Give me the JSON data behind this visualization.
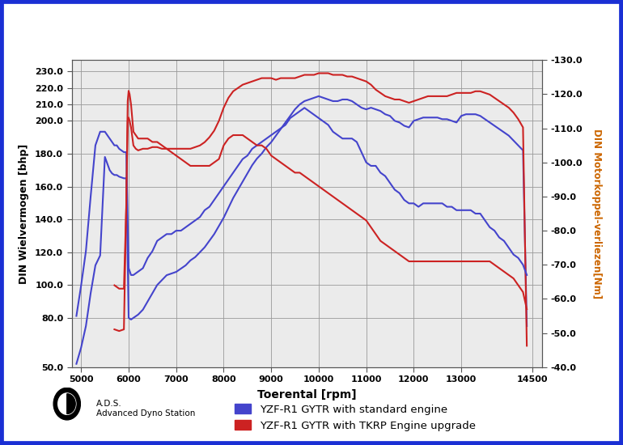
{
  "xlabel": "Toerental [rpm]",
  "ylabel_left": "DIN Wielvermogen [bhp]",
  "ylabel_right": "DIN Motorkoppel-verliezen[Nm]",
  "xlim": [
    4800,
    14700
  ],
  "ylim_left": [
    50.0,
    237.0
  ],
  "ylim_right": [
    -40.0,
    -130.0
  ],
  "yticks_left": [
    50.0,
    80.0,
    100.0,
    120.0,
    140.0,
    160.0,
    180.0,
    200.0,
    210.0,
    220.0,
    230.0
  ],
  "yticks_right": [
    -40.0,
    -50.0,
    -60.0,
    -70.0,
    -80.0,
    -90.0,
    -100.0,
    -110.0,
    -120.0,
    -130.0
  ],
  "xticks": [
    5000,
    6000,
    7000,
    8000,
    9000,
    10000,
    11000,
    12000,
    13000,
    14500
  ],
  "background_color": "#ebebeb",
  "border_color": "#1a2fd4",
  "grid_color": "#999999",
  "blue_color": "#4444cc",
  "red_color": "#cc2222",
  "legend_blue": "YZF-R1 GYTR with standard engine",
  "legend_red": "YZF-R1 GYTR with TKRP Engine upgrade",
  "ads_text": "A.D.S.\nAdvanced Dyno Station",
  "blue_power_rpm": [
    4900,
    5000,
    5100,
    5200,
    5300,
    5400,
    5500,
    5550,
    5600,
    5650,
    5700,
    5750,
    5800,
    5900,
    5950,
    6000,
    6050,
    6100,
    6200,
    6300,
    6400,
    6500,
    6600,
    6700,
    6800,
    6900,
    7000,
    7100,
    7200,
    7300,
    7400,
    7500,
    7600,
    7700,
    7800,
    7900,
    8000,
    8100,
    8200,
    8300,
    8400,
    8500,
    8600,
    8700,
    8800,
    8900,
    9000,
    9100,
    9200,
    9300,
    9400,
    9500,
    9600,
    9700,
    9800,
    9900,
    10000,
    10100,
    10200,
    10300,
    10400,
    10500,
    10600,
    10700,
    10800,
    10900,
    11000,
    11100,
    11200,
    11300,
    11400,
    11500,
    11600,
    11700,
    11800,
    11900,
    12000,
    12100,
    12200,
    12300,
    12400,
    12500,
    12600,
    12700,
    12800,
    12900,
    13000,
    13100,
    13200,
    13300,
    13400,
    13500,
    13600,
    13700,
    13800,
    13900,
    14000,
    14100,
    14200,
    14300,
    14380
  ],
  "blue_power_vals": [
    52,
    62,
    75,
    95,
    112,
    118,
    178,
    174,
    170,
    168,
    167,
    167,
    166,
    165,
    165,
    80,
    79,
    80,
    82,
    85,
    90,
    95,
    100,
    103,
    106,
    107,
    108,
    110,
    112,
    115,
    117,
    120,
    123,
    127,
    131,
    136,
    141,
    147,
    153,
    158,
    163,
    168,
    173,
    177,
    180,
    184,
    187,
    191,
    195,
    199,
    203,
    207,
    210,
    212,
    213,
    214,
    215,
    214,
    213,
    212,
    212,
    213,
    213,
    212,
    210,
    208,
    207,
    208,
    207,
    206,
    204,
    203,
    200,
    199,
    197,
    196,
    200,
    201,
    202,
    202,
    202,
    202,
    201,
    201,
    200,
    199,
    203,
    204,
    204,
    204,
    203,
    201,
    199,
    197,
    195,
    193,
    191,
    188,
    185,
    182,
    75
  ],
  "blue_torque_rpm": [
    4900,
    5000,
    5100,
    5200,
    5300,
    5400,
    5500,
    5550,
    5600,
    5650,
    5700,
    5750,
    5800,
    5900,
    5950,
    6000,
    6050,
    6100,
    6200,
    6300,
    6400,
    6500,
    6600,
    6700,
    6800,
    6900,
    7000,
    7100,
    7200,
    7300,
    7400,
    7500,
    7600,
    7700,
    7800,
    7900,
    8000,
    8100,
    8200,
    8300,
    8400,
    8500,
    8600,
    8700,
    8800,
    8900,
    9000,
    9100,
    9200,
    9300,
    9400,
    9500,
    9600,
    9700,
    9800,
    9900,
    10000,
    10100,
    10200,
    10300,
    10400,
    10500,
    10600,
    10700,
    10800,
    10900,
    11000,
    11100,
    11200,
    11300,
    11400,
    11500,
    11600,
    11700,
    11800,
    11900,
    12000,
    12100,
    12200,
    12300,
    12400,
    12500,
    12600,
    12700,
    12800,
    12900,
    13000,
    13100,
    13200,
    13300,
    13400,
    13500,
    13600,
    13700,
    13800,
    13900,
    14000,
    14100,
    14200,
    14300,
    14380
  ],
  "blue_torque_vals": [
    -55,
    -64,
    -74,
    -90,
    -105,
    -109,
    -109,
    -108,
    -107,
    -106,
    -105,
    -105,
    -104,
    -103,
    -103,
    -69,
    -67,
    -67,
    -68,
    -69,
    -72,
    -74,
    -77,
    -78,
    -79,
    -79,
    -80,
    -80,
    -81,
    -82,
    -83,
    -84,
    -86,
    -87,
    -89,
    -91,
    -93,
    -95,
    -97,
    -99,
    -101,
    -102,
    -104,
    -105,
    -106,
    -107,
    -108,
    -109,
    -110,
    -111,
    -113,
    -114,
    -115,
    -116,
    -115,
    -114,
    -113,
    -112,
    -111,
    -109,
    -108,
    -107,
    -107,
    -107,
    -106,
    -103,
    -100,
    -99,
    -99,
    -97,
    -96,
    -94,
    -92,
    -91,
    -89,
    -88,
    -88,
    -87,
    -88,
    -88,
    -88,
    -88,
    -88,
    -87,
    -87,
    -86,
    -86,
    -86,
    -86,
    -85,
    -85,
    -83,
    -81,
    -80,
    -78,
    -77,
    -75,
    -73,
    -72,
    -70,
    -67
  ],
  "red_power_rpm": [
    5700,
    5800,
    5900,
    5950,
    5980,
    6000,
    6020,
    6050,
    6100,
    6150,
    6200,
    6300,
    6400,
    6500,
    6600,
    6700,
    6800,
    6900,
    7000,
    7100,
    7200,
    7300,
    7400,
    7500,
    7600,
    7700,
    7800,
    7900,
    8000,
    8100,
    8200,
    8300,
    8400,
    8500,
    8600,
    8700,
    8800,
    8900,
    9000,
    9100,
    9200,
    9300,
    9400,
    9500,
    9600,
    9700,
    9800,
    9900,
    10000,
    10100,
    10200,
    10300,
    10400,
    10500,
    10600,
    10700,
    10800,
    10900,
    11000,
    11100,
    11200,
    11300,
    11400,
    11500,
    11600,
    11700,
    11800,
    11900,
    12000,
    12100,
    12200,
    12300,
    12400,
    12500,
    12600,
    12700,
    12800,
    12900,
    13000,
    13100,
    13200,
    13300,
    13400,
    13500,
    13600,
    13700,
    13800,
    13900,
    14000,
    14100,
    14200,
    14300,
    14380
  ],
  "red_power_vals": [
    73,
    72,
    73,
    150,
    200,
    202,
    200,
    196,
    185,
    183,
    182,
    183,
    183,
    184,
    184,
    183,
    183,
    183,
    183,
    183,
    183,
    183,
    184,
    185,
    187,
    190,
    194,
    200,
    208,
    214,
    218,
    220,
    222,
    223,
    224,
    225,
    226,
    226,
    226,
    225,
    226,
    226,
    226,
    226,
    227,
    228,
    228,
    228,
    229,
    229,
    229,
    228,
    228,
    228,
    227,
    227,
    226,
    225,
    224,
    222,
    219,
    217,
    215,
    214,
    213,
    213,
    212,
    211,
    212,
    213,
    214,
    215,
    215,
    215,
    215,
    215,
    216,
    217,
    217,
    217,
    217,
    218,
    218,
    217,
    216,
    214,
    212,
    210,
    208,
    205,
    201,
    196,
    63
  ],
  "red_torque_rpm": [
    5700,
    5800,
    5900,
    5950,
    5980,
    6000,
    6020,
    6050,
    6100,
    6150,
    6200,
    6300,
    6400,
    6500,
    6600,
    6700,
    6800,
    6900,
    7000,
    7100,
    7200,
    7300,
    7400,
    7500,
    7600,
    7700,
    7800,
    7900,
    8000,
    8100,
    8200,
    8300,
    8400,
    8500,
    8600,
    8700,
    8800,
    8900,
    9000,
    9100,
    9200,
    9300,
    9400,
    9500,
    9600,
    9700,
    9800,
    9900,
    10000,
    10100,
    10200,
    10300,
    10400,
    10500,
    10600,
    10700,
    10800,
    10900,
    11000,
    11100,
    11200,
    11300,
    11400,
    11500,
    11600,
    11700,
    11800,
    11900,
    12000,
    12100,
    12200,
    12300,
    12400,
    12500,
    12600,
    12700,
    12800,
    12900,
    13000,
    13100,
    13200,
    13300,
    13400,
    13500,
    13600,
    13700,
    13800,
    13900,
    14000,
    14100,
    14200,
    14300,
    14380
  ],
  "red_torque_vals": [
    -64,
    -63,
    -63,
    -87,
    -118,
    -121,
    -120,
    -117,
    -109,
    -108,
    -107,
    -107,
    -107,
    -106,
    -106,
    -105,
    -104,
    -103,
    -102,
    -101,
    -100,
    -99,
    -99,
    -99,
    -99,
    -99,
    -100,
    -101,
    -105,
    -107,
    -108,
    -108,
    -108,
    -107,
    -106,
    -105,
    -105,
    -104,
    -102,
    -101,
    -100,
    -99,
    -98,
    -97,
    -97,
    -96,
    -95,
    -94,
    -93,
    -92,
    -91,
    -90,
    -89,
    -88,
    -87,
    -86,
    -85,
    -84,
    -83,
    -81,
    -79,
    -77,
    -76,
    -75,
    -74,
    -73,
    -72,
    -71,
    -71,
    -71,
    -71,
    -71,
    -71,
    -71,
    -71,
    -71,
    -71,
    -71,
    -71,
    -71,
    -71,
    -71,
    -71,
    -71,
    -71,
    -70,
    -69,
    -68,
    -67,
    -66,
    -64,
    -62,
    -57
  ]
}
